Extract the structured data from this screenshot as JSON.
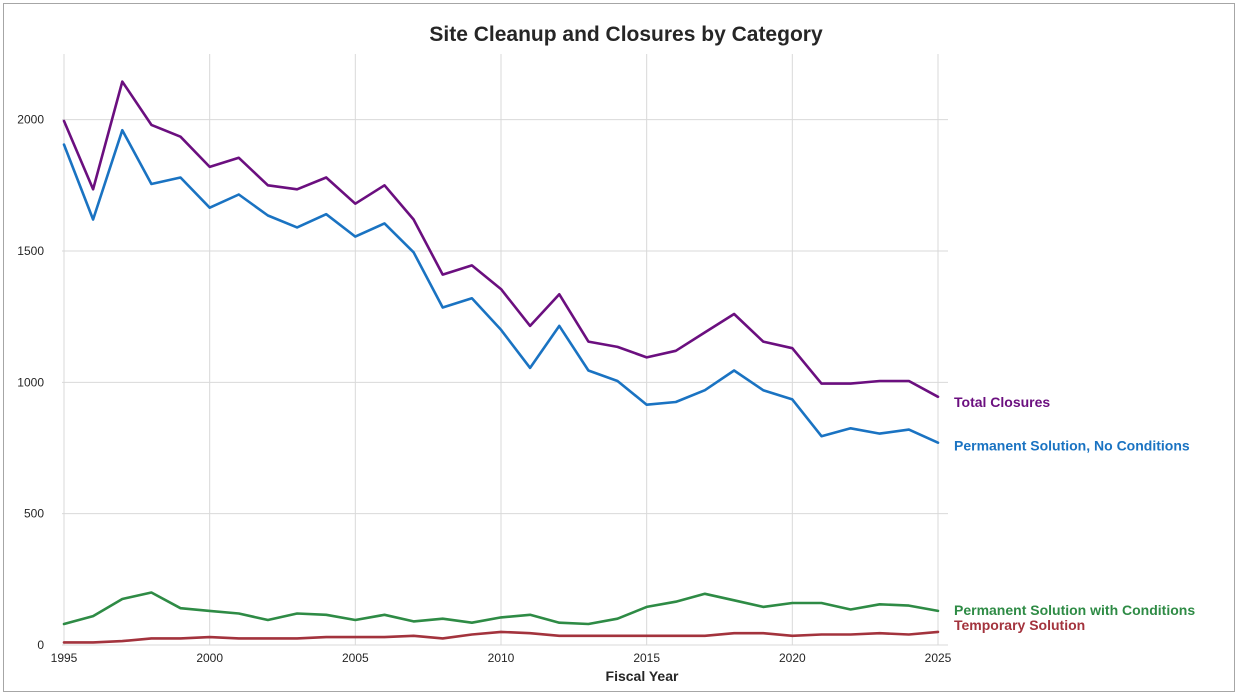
{
  "chart_data": {
    "type": "line",
    "title": "Site Cleanup and Closures by Category",
    "xlabel": "Fiscal Year",
    "ylabel": "",
    "x": [
      1995,
      1996,
      1997,
      1998,
      1999,
      2000,
      2001,
      2002,
      2003,
      2004,
      2005,
      2006,
      2007,
      2008,
      2009,
      2010,
      2011,
      2012,
      2013,
      2014,
      2015,
      2016,
      2017,
      2018,
      2019,
      2020,
      2021,
      2022,
      2023,
      2024,
      2025
    ],
    "xlim": [
      1995,
      2025
    ],
    "ylim": [
      0,
      2250
    ],
    "xticks": [
      1995,
      2000,
      2005,
      2010,
      2015,
      2020,
      2025
    ],
    "yticks": [
      0,
      500,
      1000,
      1500,
      2000
    ],
    "xtick_labels": [
      "1995",
      "2000",
      "2005",
      "2010",
      "2015",
      "2020",
      "2025"
    ],
    "ytick_labels": [
      "0",
      "500",
      "1000",
      "1500",
      "2000"
    ],
    "grid": true,
    "legend": "direct labels at right end of lines",
    "series": [
      {
        "name": "Total Closures",
        "color": "#6b0f7f",
        "values": [
          1995,
          1735,
          2145,
          1980,
          1935,
          1820,
          1855,
          1750,
          1735,
          1780,
          1680,
          1750,
          1620,
          1410,
          1445,
          1355,
          1215,
          1335,
          1155,
          1135,
          1095,
          1120,
          1190,
          1260,
          1155,
          1130,
          995,
          995,
          1005,
          1005,
          945
        ]
      },
      {
        "name": "Permanent Solution, No Conditions",
        "color": "#1a73c2",
        "values": [
          1905,
          1620,
          1960,
          1755,
          1780,
          1665,
          1715,
          1635,
          1590,
          1640,
          1555,
          1605,
          1495,
          1285,
          1320,
          1200,
          1055,
          1215,
          1045,
          1005,
          915,
          925,
          970,
          1045,
          970,
          935,
          795,
          825,
          805,
          820,
          770
        ]
      },
      {
        "name": "Permanent Solution with Conditions",
        "color": "#2e8b45",
        "values": [
          80,
          110,
          175,
          200,
          140,
          130,
          120,
          95,
          120,
          115,
          95,
          115,
          90,
          100,
          85,
          105,
          115,
          85,
          80,
          100,
          145,
          165,
          195,
          170,
          145,
          160,
          160,
          135,
          155,
          150,
          130
        ]
      },
      {
        "name": "Temporary Solution",
        "color": "#a3333d",
        "values": [
          10,
          10,
          15,
          25,
          25,
          30,
          25,
          25,
          25,
          30,
          30,
          30,
          35,
          25,
          40,
          50,
          45,
          35,
          35,
          35,
          35,
          35,
          35,
          45,
          45,
          35,
          40,
          40,
          45,
          40,
          50
        ]
      }
    ]
  }
}
